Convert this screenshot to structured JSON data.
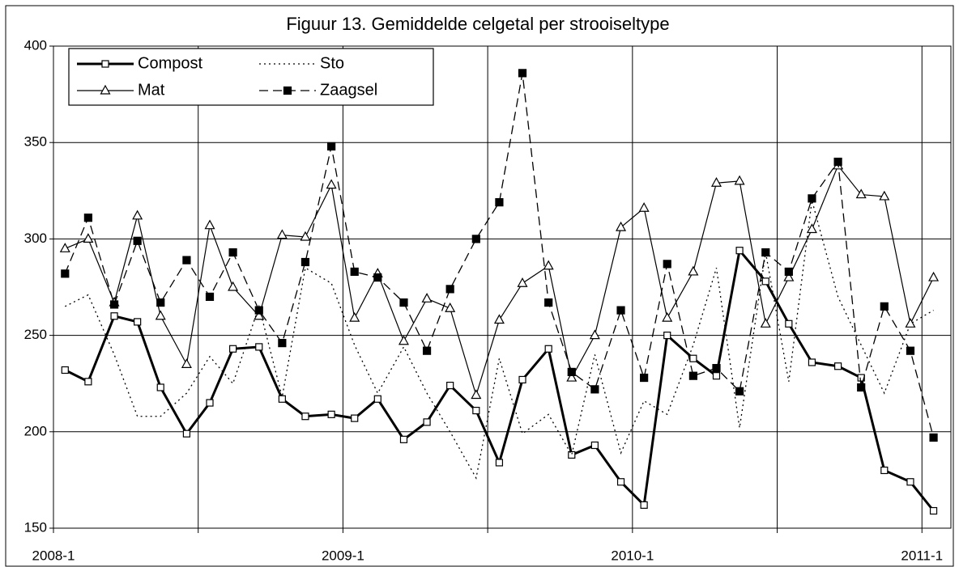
{
  "chart_data": {
    "type": "line",
    "title": "Figuur 13. Gemiddelde celgetal per strooiseltype",
    "x": [
      2008.04,
      2008.12,
      2008.21,
      2008.29,
      2008.37,
      2008.46,
      2008.54,
      2008.62,
      2008.71,
      2008.79,
      2008.87,
      2008.96,
      2009.04,
      2009.12,
      2009.21,
      2009.29,
      2009.37,
      2009.46,
      2009.54,
      2009.62,
      2009.71,
      2009.79,
      2009.87,
      2009.96,
      2010.04,
      2010.12,
      2010.21,
      2010.29,
      2010.37,
      2010.46,
      2010.54,
      2010.62,
      2010.71,
      2010.79,
      2010.87,
      2010.96,
      2011.04
    ],
    "xlim": [
      2008,
      2011.1
    ],
    "xticks": [
      {
        "value": 2008,
        "label": "2008-1"
      },
      {
        "value": 2008.5,
        "label": null
      },
      {
        "value": 2009,
        "label": "2009-1"
      },
      {
        "value": 2009.5,
        "label": null
      },
      {
        "value": 2010,
        "label": "2010-1"
      },
      {
        "value": 2010.5,
        "label": null
      },
      {
        "value": 2011,
        "label": "2011-1"
      }
    ],
    "ylim": [
      150,
      400
    ],
    "yticks": [
      150,
      200,
      250,
      300,
      350,
      400
    ],
    "grid": true,
    "legend": "upper left",
    "series": [
      {
        "name": "Compost",
        "color": "#000000",
        "line_style": "solid",
        "line_width": 3,
        "marker": "square-open",
        "values": [
          232,
          226,
          260,
          257,
          223,
          199,
          215,
          243,
          244,
          217,
          208,
          209,
          207,
          217,
          196,
          205,
          224,
          211,
          184,
          227,
          243,
          188,
          193,
          174,
          162,
          250,
          238,
          229,
          294,
          278,
          256,
          236,
          234,
          228,
          180,
          174,
          159
        ]
      },
      {
        "name": "Sto",
        "color": "#000000",
        "line_style": "dotted",
        "line_width": 1.3,
        "marker": "none",
        "values": [
          265,
          271,
          240,
          208,
          208,
          220,
          239,
          225,
          265,
          218,
          285,
          277,
          245,
          220,
          244,
          220,
          200,
          176,
          238,
          199,
          209,
          188,
          240,
          189,
          216,
          209,
          245,
          285,
          202,
          293,
          226,
          320,
          270,
          245,
          220,
          256,
          263
        ]
      },
      {
        "name": "Mat",
        "color": "#000000",
        "line_style": "solid",
        "line_width": 1.2,
        "marker": "triangle-open",
        "values": [
          295,
          300,
          267,
          312,
          260,
          235,
          307,
          275,
          260,
          302,
          301,
          328,
          259,
          282,
          247,
          269,
          264,
          219,
          258,
          277,
          286,
          228,
          250,
          306,
          316,
          259,
          283,
          329,
          330,
          256,
          280,
          305,
          338,
          323,
          322,
          256,
          280
        ]
      },
      {
        "name": "Zaagsel",
        "color": "#000000",
        "line_style": "dashed",
        "line_width": 1.3,
        "marker": "square-filled",
        "values": [
          282,
          311,
          266,
          299,
          267,
          289,
          270,
          293,
          263,
          246,
          288,
          348,
          283,
          280,
          267,
          242,
          274,
          300,
          319,
          386,
          267,
          231,
          222,
          263,
          228,
          287,
          229,
          233,
          221,
          293,
          283,
          321,
          340,
          223,
          265,
          242,
          197
        ]
      }
    ]
  }
}
